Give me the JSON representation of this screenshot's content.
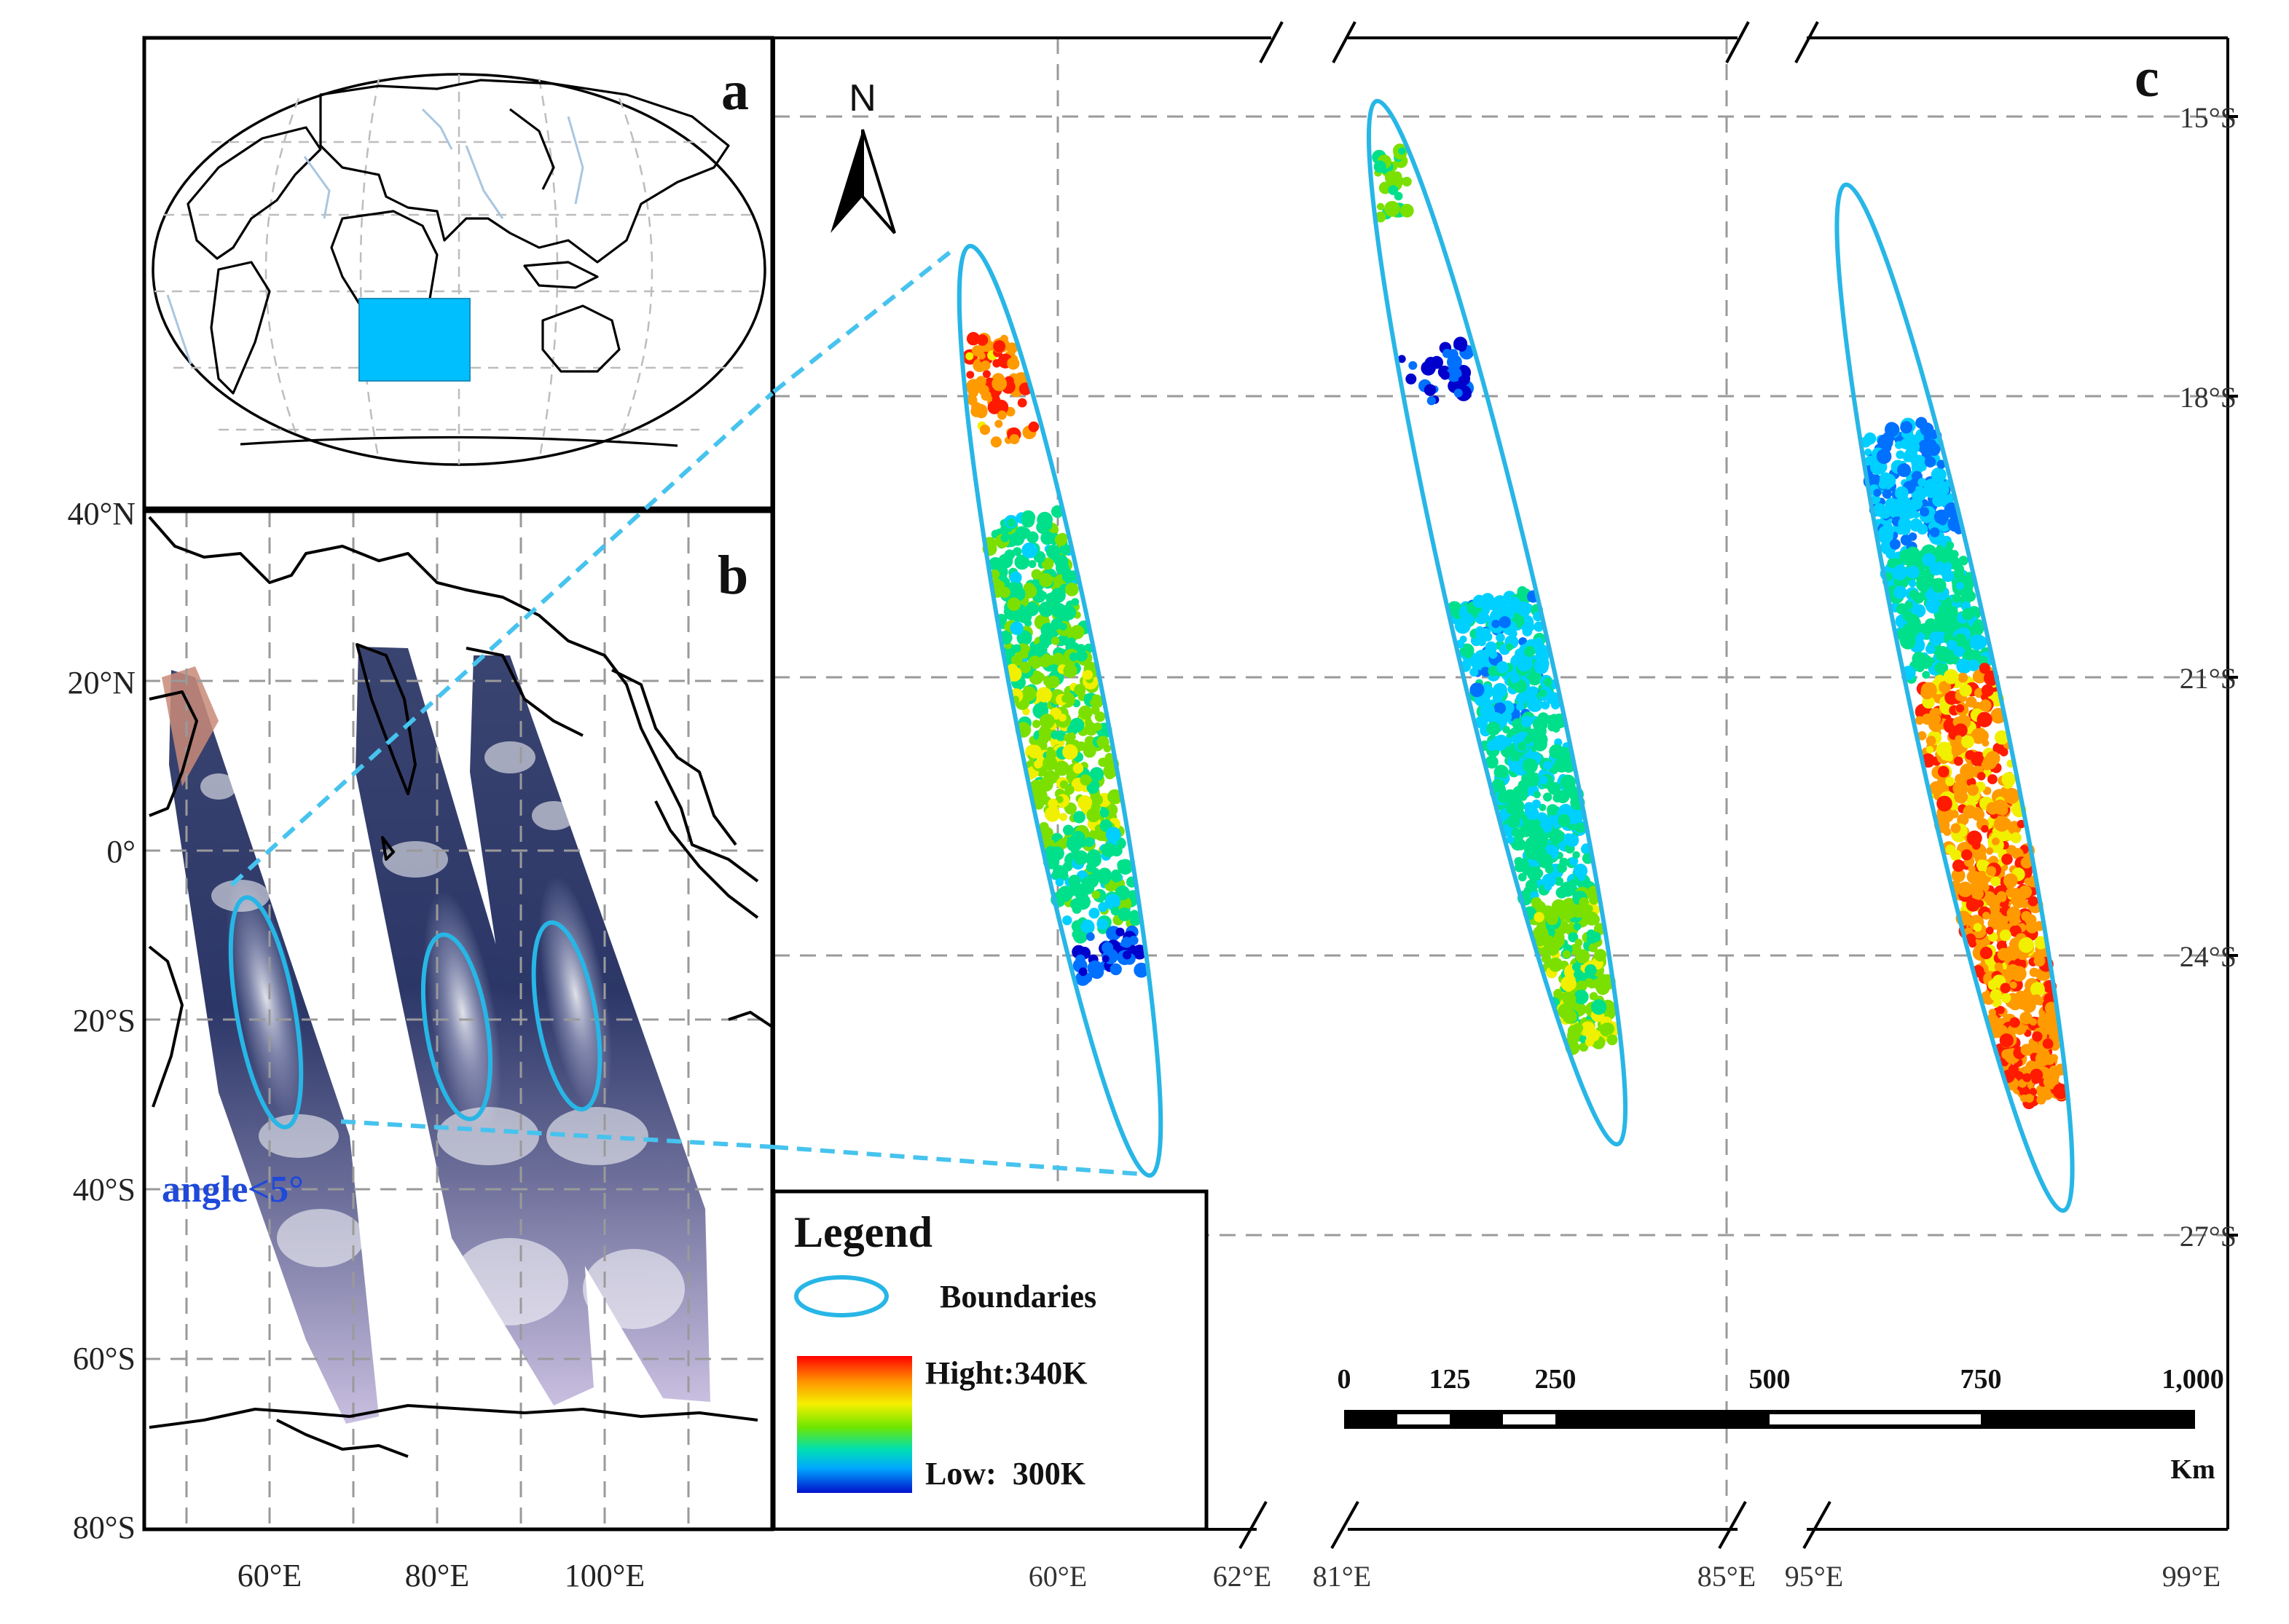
{
  "panels": {
    "a": {
      "letter": "a"
    },
    "b": {
      "letter": "b",
      "lat_labels": [
        "40°N",
        "20°N",
        "0°",
        "20°S",
        "40°S",
        "60°S",
        "80°S"
      ],
      "lon_labels": [
        "60°E",
        "80°E",
        "100°E"
      ],
      "annotation": "angle<5°"
    },
    "c": {
      "letter": "c",
      "north_label": "N",
      "lat_labels": [
        "15°S",
        "18°S",
        "21°S",
        "24°S",
        "27°S"
      ],
      "lon_labels": [
        "60°E",
        "62°E",
        "81°E",
        "85°E",
        "95°E",
        "99°E"
      ]
    }
  },
  "legend": {
    "title": "Legend",
    "boundaries_label": "Boundaries",
    "high_label": "Hight:340K",
    "low_label": "Low:  300K",
    "high_value_k": 340,
    "low_value_k": 300
  },
  "scale_bar": {
    "ticks": [
      "0",
      "125",
      "250",
      "500",
      "750",
      "1,000"
    ],
    "tick_values": [
      0,
      125,
      250,
      500,
      750,
      1000
    ],
    "unit": "Km"
  },
  "colors": {
    "boundary": "#27b6e6",
    "connector": "#46c3ee",
    "region_highlight": "#00bfff",
    "annotation": "#1f49d8",
    "ocean_imagery": "#2e3a66",
    "colormap": [
      "#0000cc",
      "#0070ff",
      "#00d0ff",
      "#00e08a",
      "#7be000",
      "#f0f000",
      "#ff9a00",
      "#ff1a00"
    ]
  }
}
